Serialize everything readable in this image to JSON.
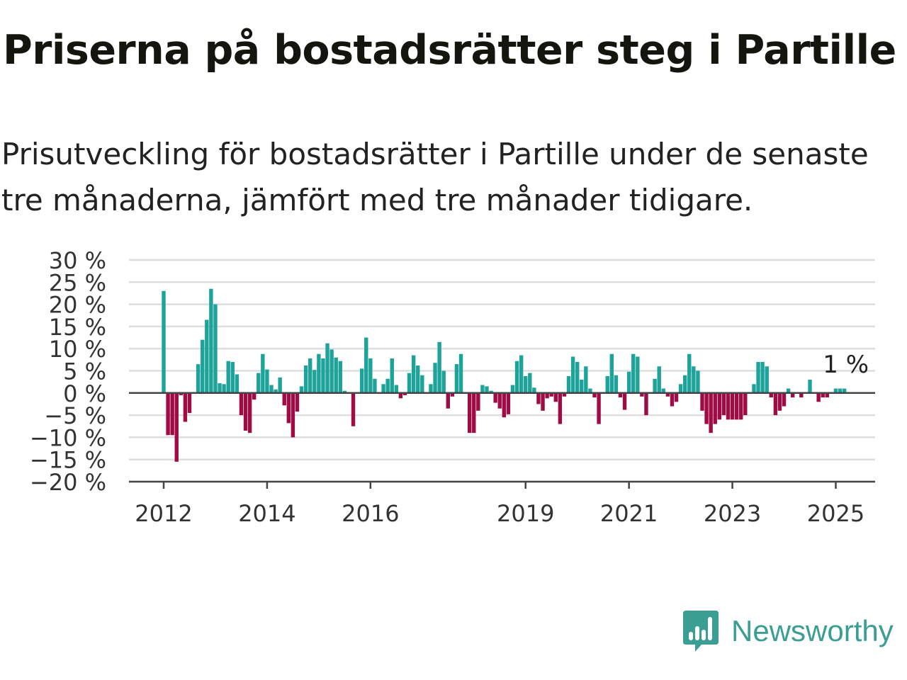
{
  "title": "Priserna på bostadsrätter steg i Partille",
  "subtitle": "Prisutveckling för bostadsrätter i Partille under de senaste tre månaderna, jämfört med tre månader tidigare.",
  "brand": {
    "name": "Newsworthy",
    "color": "#3a9e92",
    "icon": "bar-chart-speech-bubble-icon"
  },
  "colors": {
    "positive": "#1ea39a",
    "negative": "#9e0b45",
    "grid": "#dddddd",
    "axis": "#444444"
  },
  "chart_data": {
    "type": "bar",
    "x_start": "2012-01",
    "x_unit": "month",
    "ylim": [
      -20,
      30
    ],
    "yticks": [
      {
        "value": 30,
        "label": "30 %"
      },
      {
        "value": 25,
        "label": "25 %"
      },
      {
        "value": 20,
        "label": "20 %"
      },
      {
        "value": 15,
        "label": "15 %"
      },
      {
        "value": 10,
        "label": "10 %"
      },
      {
        "value": 5,
        "label": "5 %"
      },
      {
        "value": 0,
        "label": "0 %"
      },
      {
        "value": -5,
        "label": "−5 %"
      },
      {
        "value": -10,
        "label": "−10 %"
      },
      {
        "value": -15,
        "label": "−15 %"
      },
      {
        "value": -20,
        "label": "−20 %"
      }
    ],
    "xticks": [
      {
        "month": "2012-01",
        "label": "2012"
      },
      {
        "month": "2014-01",
        "label": "2014"
      },
      {
        "month": "2016-01",
        "label": "2016"
      },
      {
        "month": "2019-01",
        "label": "2019"
      },
      {
        "month": "2021-01",
        "label": "2021"
      },
      {
        "month": "2023-01",
        "label": "2023"
      },
      {
        "month": "2025-01",
        "label": "2025"
      }
    ],
    "annotation": {
      "text": "1 %",
      "month": "2025-03"
    },
    "grid": true,
    "values": [
      23.0,
      -9.5,
      -9.5,
      -15.5,
      -0.5,
      -6.5,
      -4.5,
      0,
      6.5,
      12.0,
      16.5,
      23.5,
      20.0,
      2.2,
      2.0,
      7.2,
      7.0,
      4.2,
      -5.0,
      -8.5,
      -9.0,
      -1.5,
      4.5,
      8.8,
      5.3,
      1.8,
      0.8,
      3.5,
      -2.8,
      -6.8,
      -10.0,
      -4.2,
      1.5,
      6.2,
      7.8,
      5.2,
      8.8,
      7.8,
      11.2,
      9.8,
      8.0,
      7.2,
      0.5,
      0,
      -7.5,
      0,
      5.5,
      12.5,
      7.8,
      3.2,
      0,
      2.0,
      3.2,
      7.8,
      1.8,
      -1.2,
      -0.5,
      4.5,
      8.5,
      6.2,
      4.0,
      0,
      2.0,
      6.8,
      11.5,
      5.0,
      -3.5,
      -0.8,
      6.5,
      8.8,
      0.2,
      -9.0,
      -9.0,
      -4.0,
      1.8,
      1.5,
      0.5,
      -2.2,
      -3.5,
      -5.5,
      -4.8,
      1.8,
      7.2,
      8.5,
      3.8,
      4.5,
      1.2,
      -2.5,
      -4.0,
      -1.2,
      -0.8,
      -2.0,
      -7.0,
      -0.8,
      3.8,
      8.2,
      7.0,
      3.0,
      6.0,
      1.0,
      -1.0,
      -7.0,
      0,
      3.8,
      8.8,
      4.0,
      -1.0,
      -3.8,
      4.8,
      8.8,
      8.2,
      -0.8,
      -5.0,
      0,
      3.2,
      6.0,
      1.0,
      -0.8,
      -3.0,
      -2.0,
      2.0,
      4.0,
      8.8,
      6.0,
      5.0,
      -4.0,
      -7.0,
      -9.0,
      -7.0,
      -6.0,
      -5.0,
      -6.0,
      -6.0,
      -6.0,
      -6.0,
      -5.0,
      0,
      2.0,
      7.0,
      7.0,
      6.0,
      -1.0,
      -5.0,
      -4.0,
      -3.0,
      1.0,
      -1.0,
      0,
      -1.0,
      0,
      3.0,
      0,
      -2.0,
      -1.0,
      -1.0,
      0,
      1.0,
      1.0,
      1.0
    ]
  }
}
